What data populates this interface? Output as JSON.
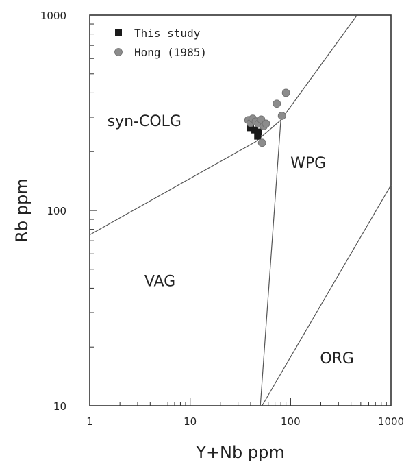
{
  "chart_data": {
    "type": "scatter",
    "title": "",
    "xlabel": "Y+Nb ppm",
    "ylabel": "Rb ppm",
    "x_scale": "log",
    "y_scale": "log",
    "xlim": [
      1,
      1000
    ],
    "ylim": [
      10,
      1000
    ],
    "grid": false,
    "legend_position": "top-left",
    "x_tick_labels": [
      "1",
      "10",
      "100",
      "1000"
    ],
    "y_tick_labels": [
      "10",
      "100",
      "1000"
    ],
    "series": [
      {
        "name": "This study",
        "marker": "square",
        "color": "#1a1a1a",
        "points": [
          {
            "x": 40,
            "y": 265
          },
          {
            "x": 44,
            "y": 258
          },
          {
            "x": 47,
            "y": 240
          },
          {
            "x": 48,
            "y": 252
          }
        ]
      },
      {
        "name": "Hong (1985)",
        "marker": "circle",
        "color": "#8c8c8c",
        "points": [
          {
            "x": 38,
            "y": 290
          },
          {
            "x": 40,
            "y": 280
          },
          {
            "x": 42,
            "y": 295
          },
          {
            "x": 45,
            "y": 285
          },
          {
            "x": 48,
            "y": 278
          },
          {
            "x": 51,
            "y": 292
          },
          {
            "x": 54,
            "y": 270
          },
          {
            "x": 57,
            "y": 278
          },
          {
            "x": 52,
            "y": 222
          },
          {
            "x": 73,
            "y": 352
          },
          {
            "x": 82,
            "y": 305
          },
          {
            "x": 90,
            "y": 400
          }
        ]
      }
    ],
    "boundaries": [
      {
        "points": [
          [
            1,
            75
          ],
          [
            45,
            225
          ],
          [
            80,
            290
          ],
          [
            460,
            1000
          ]
        ]
      },
      {
        "points": [
          [
            50,
            10
          ],
          [
            80,
            290
          ]
        ]
      },
      {
        "points": [
          [
            52,
            10
          ],
          [
            1000,
            135
          ]
        ]
      }
    ],
    "field_labels": [
      {
        "text": "syn-COLG",
        "x": 3.5,
        "y": 270
      },
      {
        "text": "WPG",
        "x": 150,
        "y": 165
      },
      {
        "text": "VAG",
        "x": 5,
        "y": 41
      },
      {
        "text": "ORG",
        "x": 290,
        "y": 16.5
      }
    ]
  }
}
